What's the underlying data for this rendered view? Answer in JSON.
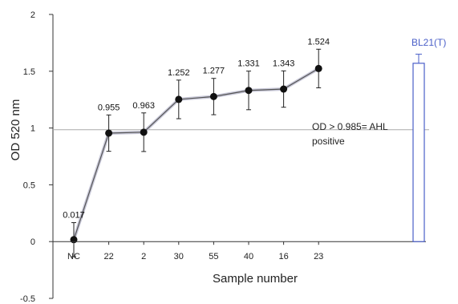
{
  "chart_data": {
    "type": "line",
    "xlabel": "Sample number",
    "ylabel": "OD 520 nm",
    "ylim": [
      -0.5,
      2
    ],
    "yticks": [
      "-0.5",
      "0",
      "0.5",
      "1",
      "1.5",
      "2"
    ],
    "categories": [
      "NC",
      "22",
      "2",
      "30",
      "55",
      "40",
      "16",
      "23"
    ],
    "series": [
      {
        "values": [
          0.017,
          0.955,
          0.963,
          1.252,
          1.277,
          1.331,
          1.343,
          1.524
        ],
        "labels": [
          "0.017",
          "0.955",
          "0.963",
          "1.252",
          "1.277",
          "1.331",
          "1.343",
          "1.524"
        ],
        "error": [
          0.15,
          0.16,
          0.17,
          0.17,
          0.16,
          0.17,
          0.16,
          0.17
        ],
        "color": "#222222"
      }
    ],
    "threshold": {
      "value": 0.985,
      "label_line1": "OD > 0.985= AHL",
      "label_line2": "positive",
      "color": "#aaaaaa"
    },
    "reference_bar": {
      "label": "BL21(T)",
      "value": 1.57,
      "error": 0.08,
      "color": "#4a5fc8"
    }
  }
}
